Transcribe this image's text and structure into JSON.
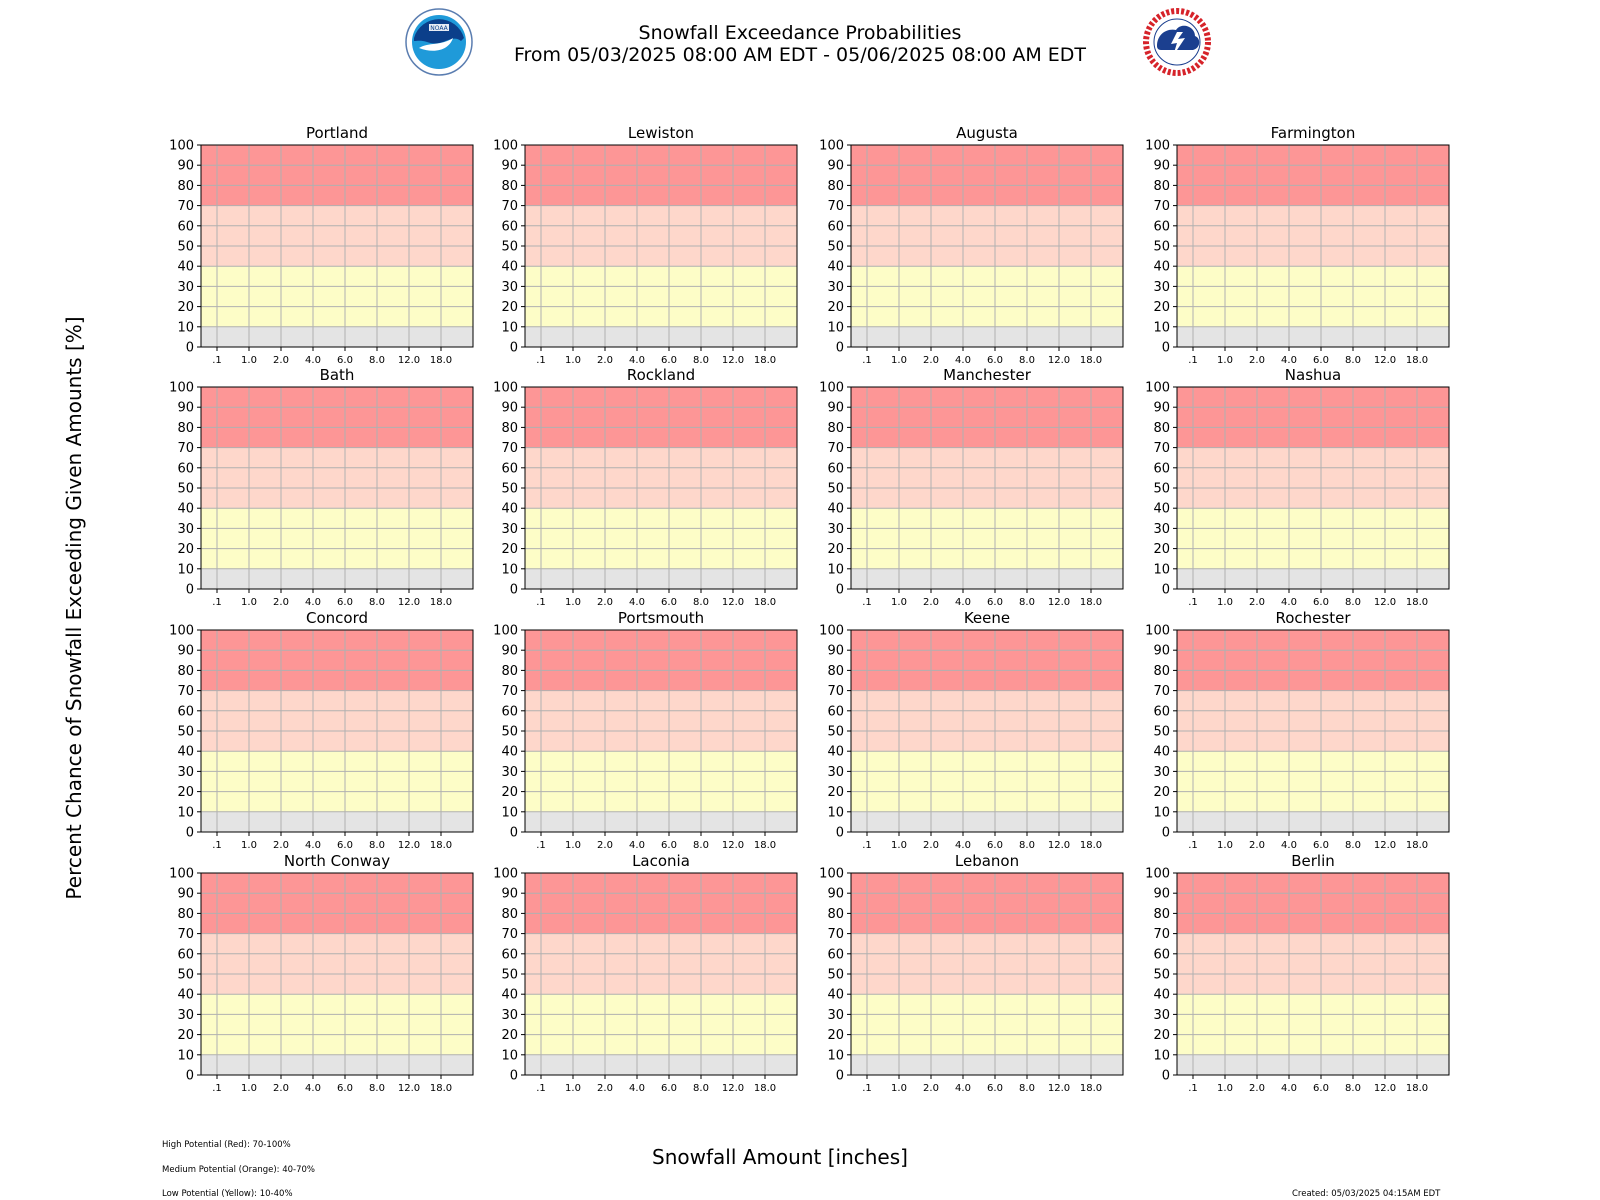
{
  "header": {
    "title_line1": "Snowfall Exceedance Probabilities",
    "title_line2": "From 05/03/2025 08:00 AM EDT - 05/06/2025 08:00 AM EDT",
    "left_logo": "noaa-logo",
    "right_logo": "nws-logo"
  },
  "axes": {
    "ylabel": "Percent Chance of Snowfall Exceeding Given Amounts [%]",
    "xlabel": "Snowfall Amount [inches]"
  },
  "legend": [
    "High Potential (Red): 70-100%",
    "Medium Potential (Orange): 40-70%",
    "Low Potential (Yellow): 10-40%"
  ],
  "footer": {
    "created": "Created: 05/03/2025 04:15AM EDT"
  },
  "colors": {
    "high": "#fd9696",
    "medium": "#fed7cb",
    "low": "#fdfdc7",
    "minimal": "#e4e4e4",
    "grid": "#b0b0b0"
  },
  "chart_data": {
    "type": "line",
    "x_ticks": [
      ".1",
      "1.0",
      "2.0",
      "4.0",
      "6.0",
      "8.0",
      "12.0",
      "18.0"
    ],
    "y_ticks": [
      0,
      10,
      20,
      30,
      40,
      50,
      60,
      70,
      80,
      90,
      100
    ],
    "ylim": [
      0,
      100
    ],
    "grid": true,
    "bands": [
      {
        "level": "minimal",
        "from": 0,
        "to": 10
      },
      {
        "level": "low",
        "from": 10,
        "to": 40
      },
      {
        "level": "medium",
        "from": 40,
        "to": 70
      },
      {
        "level": "high",
        "from": 70,
        "to": 100
      }
    ],
    "panels": [
      "Portland",
      "Lewiston",
      "Augusta",
      "Farmington",
      "Bath",
      "Rockland",
      "Manchester",
      "Nashua",
      "Concord",
      "Portsmouth",
      "Keene",
      "Rochester",
      "North Conway",
      "Laconia",
      "Lebanon",
      "Berlin"
    ]
  }
}
